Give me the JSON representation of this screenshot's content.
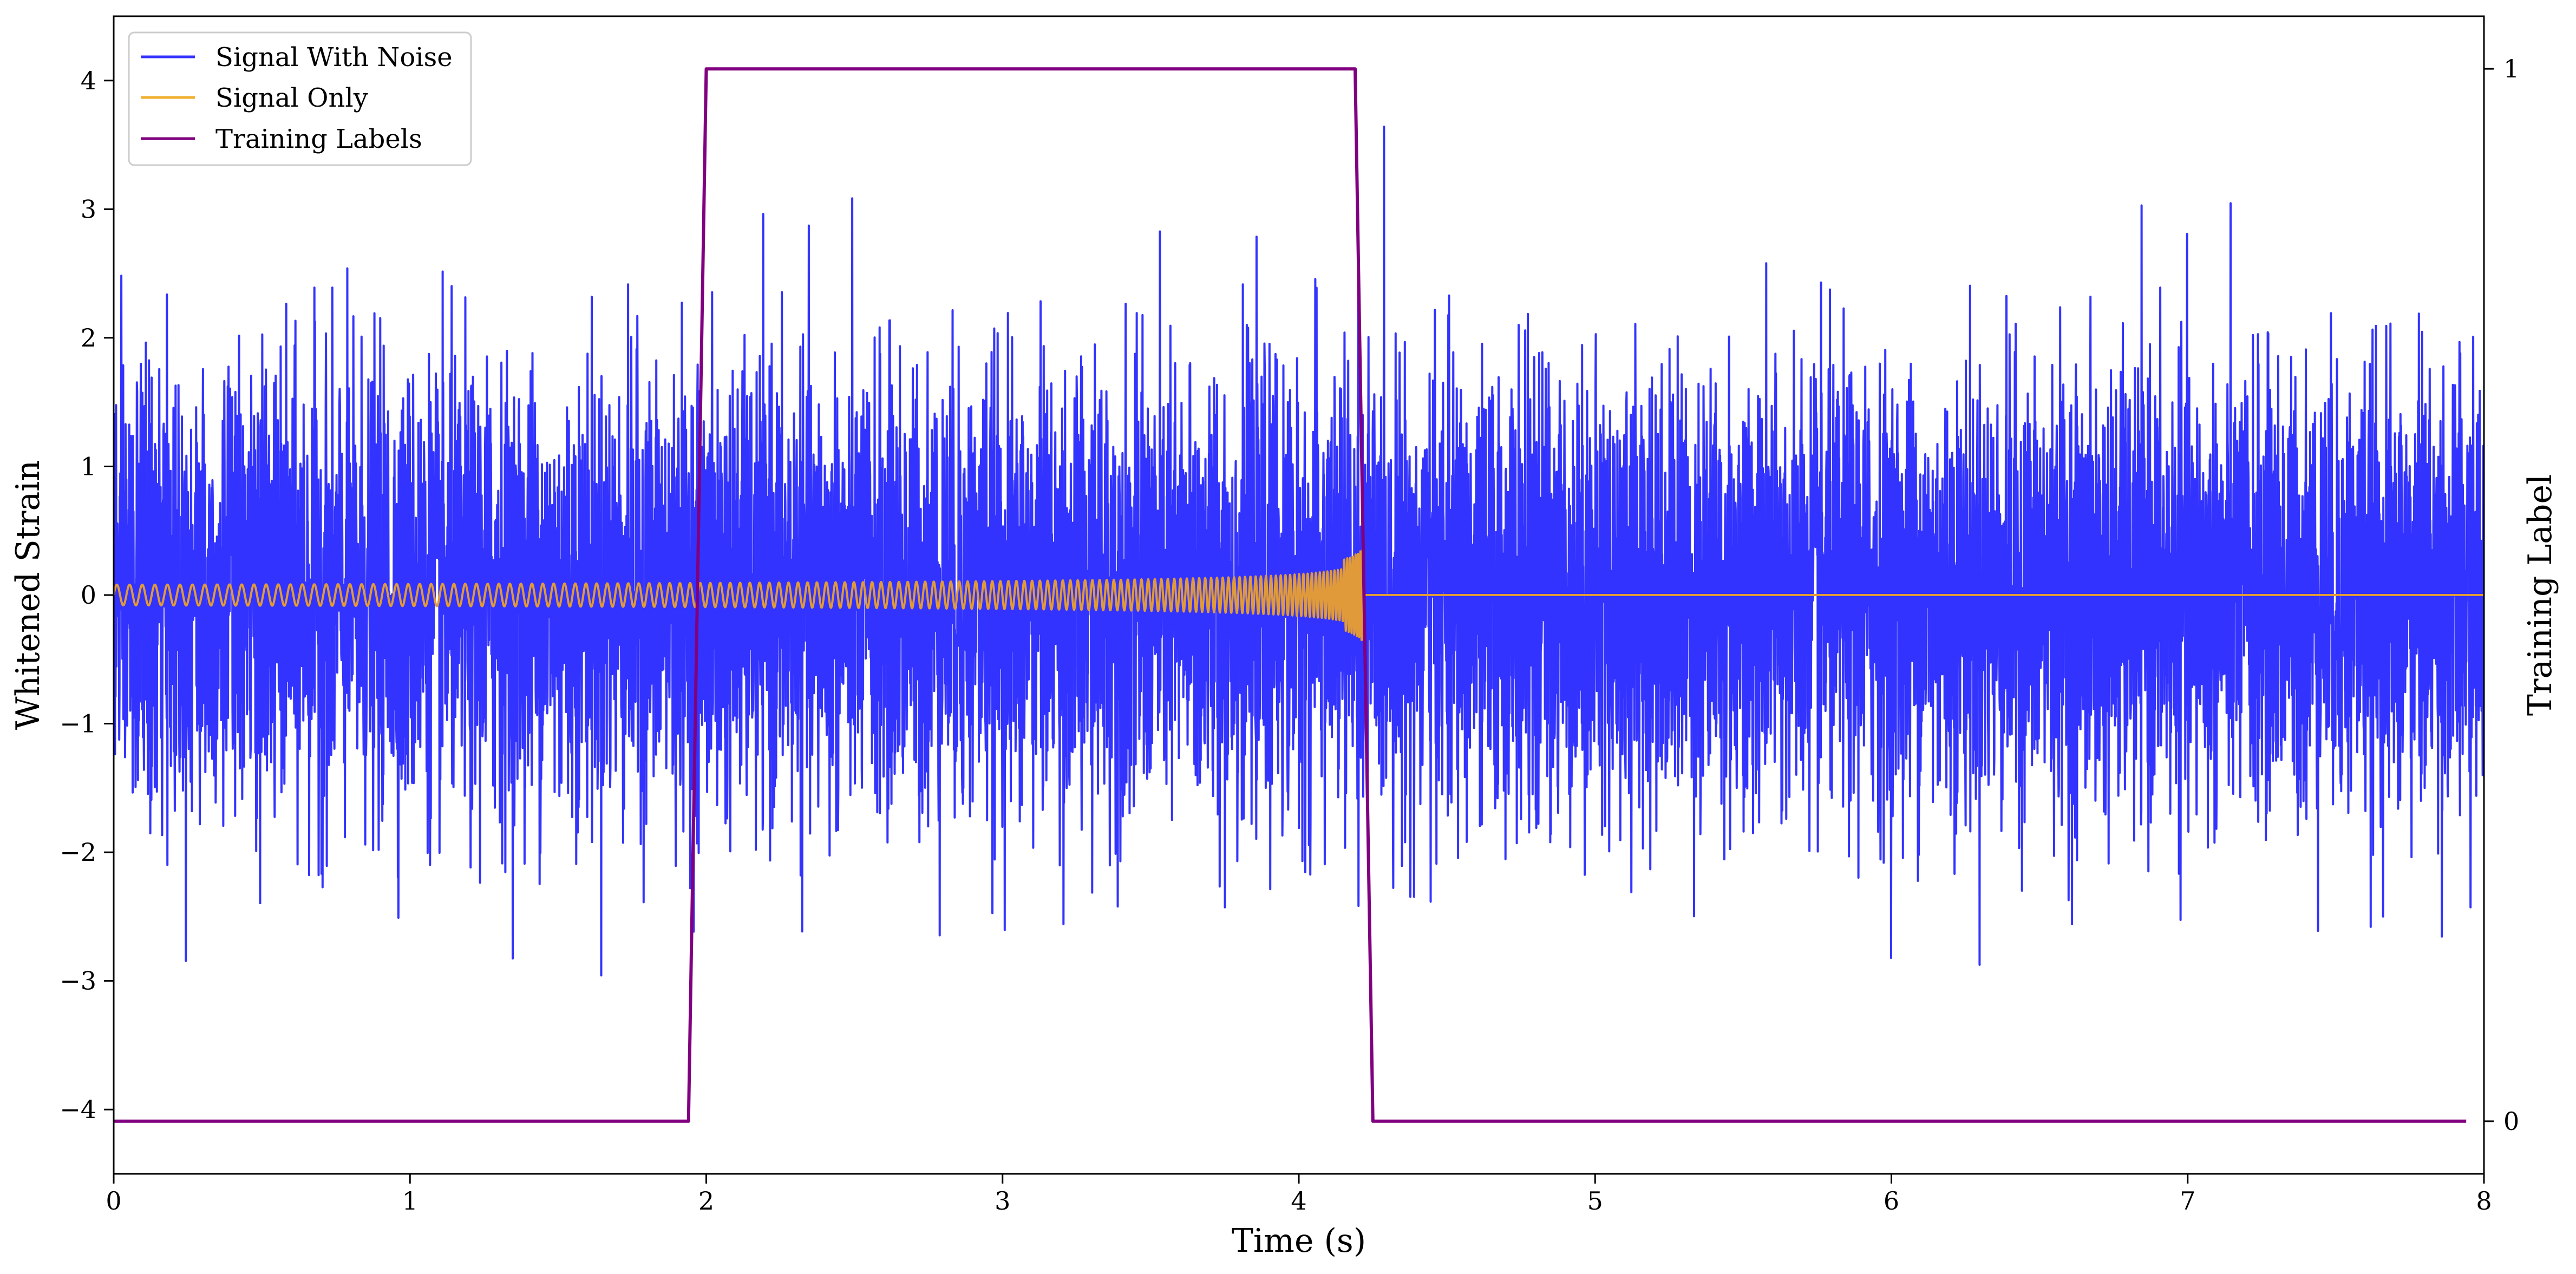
{
  "chart_data": {
    "type": "line",
    "xlabel": "Time (s)",
    "ylabel": "Whitened Strain",
    "y2label": "Training Label",
    "xlim": [
      0,
      8
    ],
    "ylim": [
      -4.5,
      4.5
    ],
    "y2lim": [
      -0.05,
      1.05
    ],
    "xticks": [
      "0",
      "1",
      "2",
      "3",
      "4",
      "5",
      "6",
      "7",
      "8"
    ],
    "yticks": [
      "4",
      "3",
      "2",
      "1",
      "0",
      "−1",
      "−2",
      "−3",
      "−4"
    ],
    "y2ticks": [
      "1",
      "0"
    ],
    "grid": false,
    "legend_position": "top-left",
    "series": [
      {
        "name": "Signal With Noise",
        "color": "#3333ff",
        "description_range": [
          -3.8,
          4.0
        ],
        "x_range": [
          0,
          8
        ],
        "noise_std": 0.85
      },
      {
        "name": "Signal Only",
        "color": "#f0b030",
        "chirp_start": 0.0,
        "chirp_end": 4.2,
        "start_amplitude": 0.08,
        "peak_amplitude": 1.05,
        "after_merger_value": 0.0
      },
      {
        "name": "Training Labels",
        "color": "#800080",
        "axis": "right",
        "points": [
          [
            0.0,
            0
          ],
          [
            1.94,
            0
          ],
          [
            2.0,
            1
          ],
          [
            4.19,
            1
          ],
          [
            4.25,
            0
          ],
          [
            7.94,
            0
          ]
        ]
      }
    ]
  }
}
